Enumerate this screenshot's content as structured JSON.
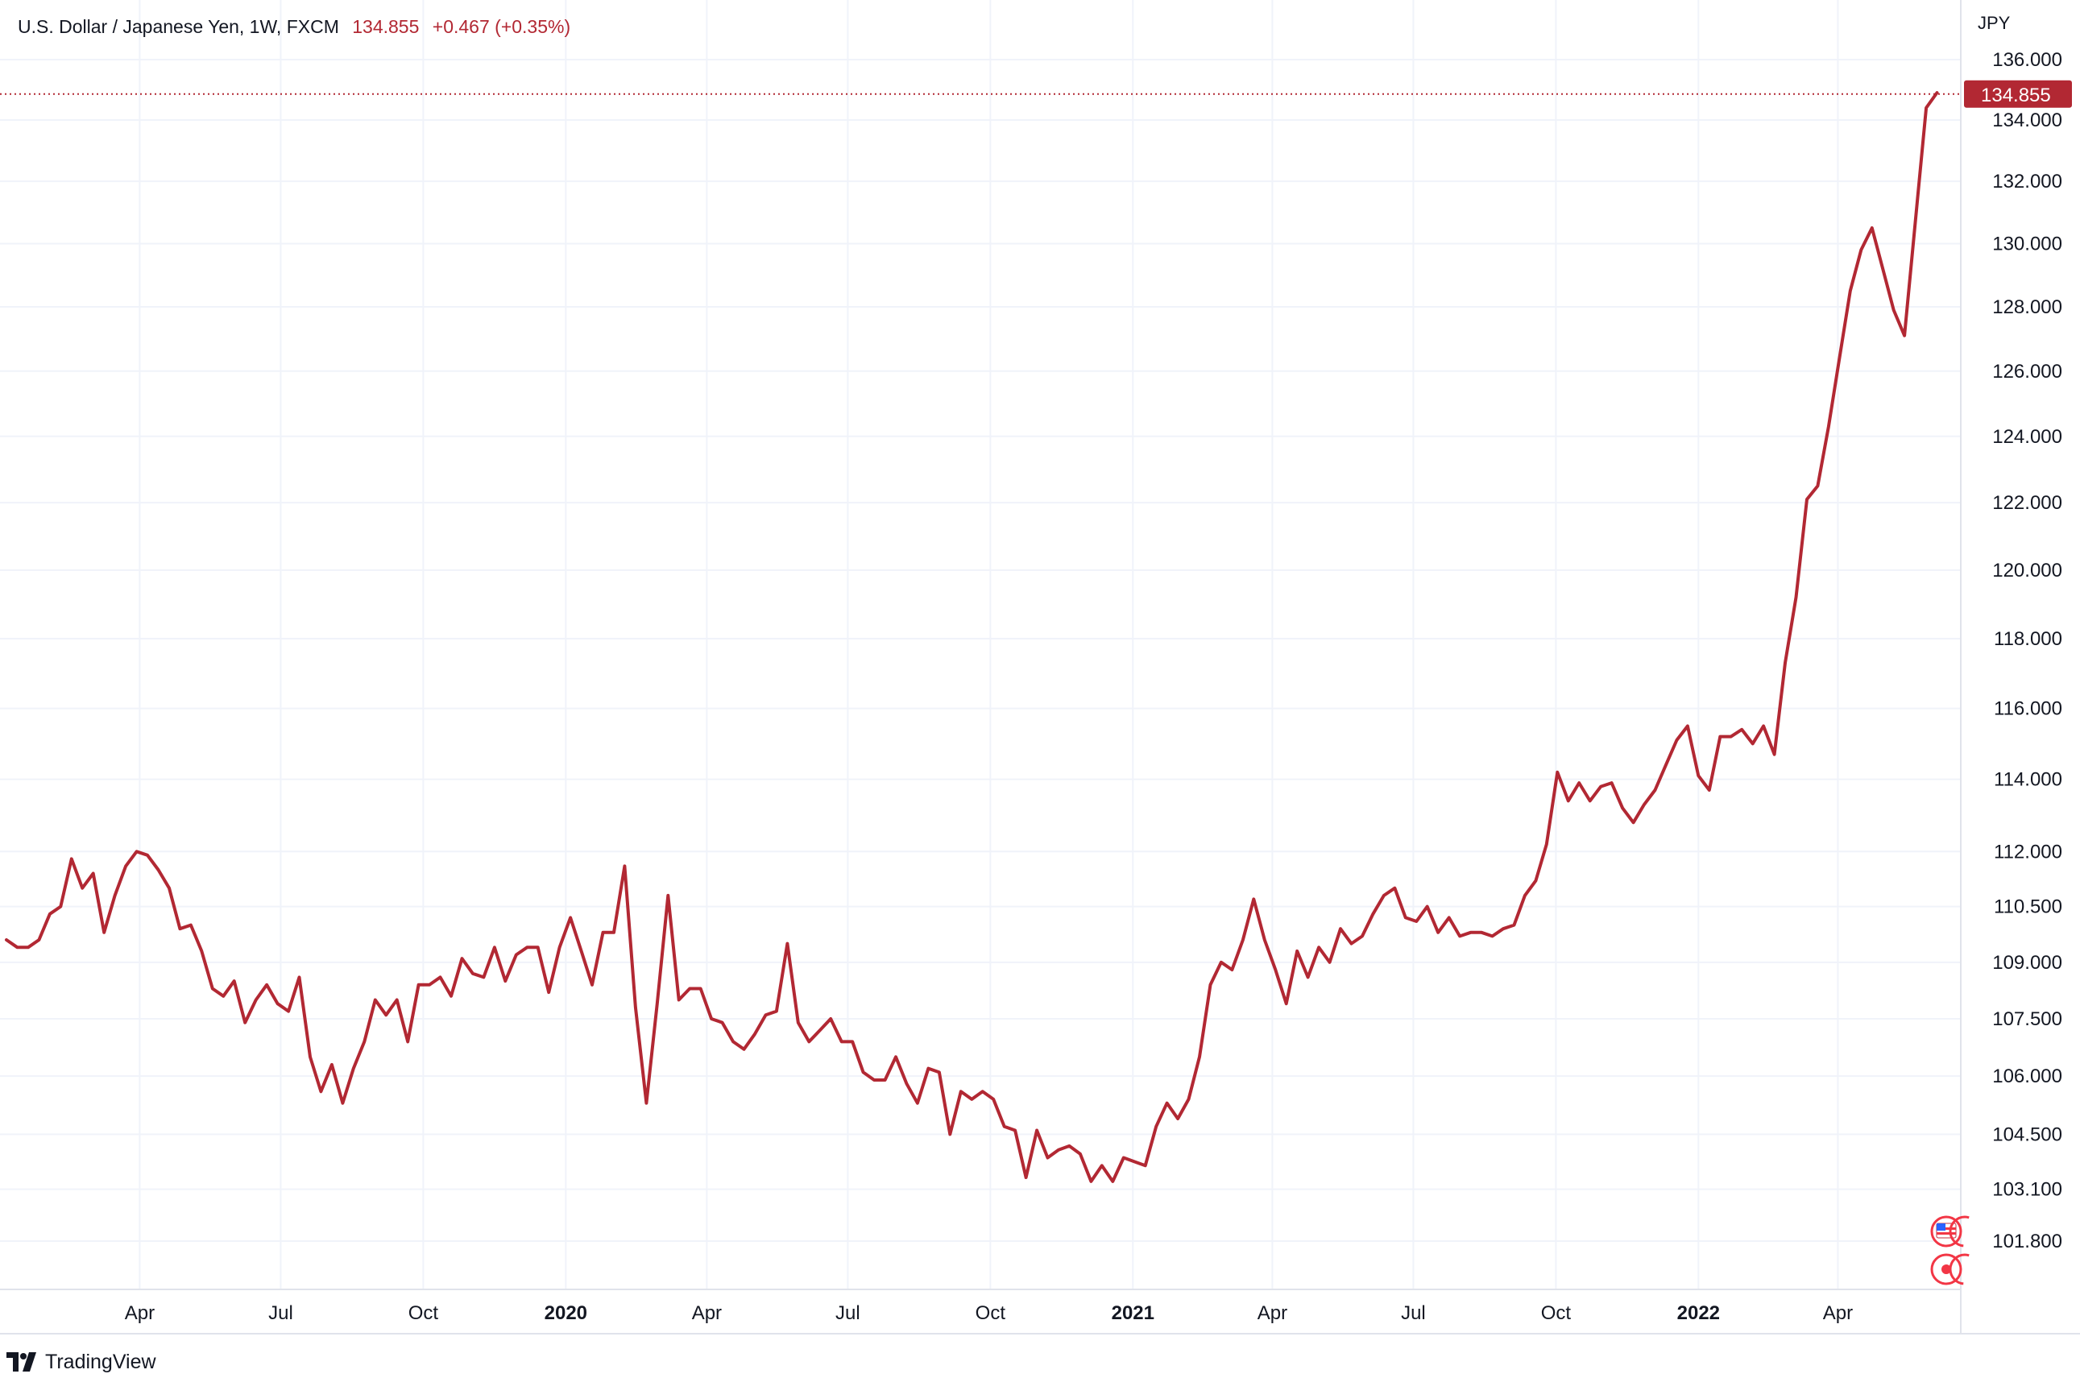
{
  "header": {
    "symbol_title": "U.S. Dollar / Japanese Yen, 1W, FXCM",
    "last_price": "134.855",
    "change": "+0.467 (+0.35%)"
  },
  "price_unit": "JPY",
  "last_price_badge": "134.855",
  "brand": {
    "name": "TradingView"
  },
  "colors": {
    "series": "#b22833",
    "grid": "#f0f3fa",
    "text": "#131722",
    "badge_bg": "#b22833"
  },
  "chart_data": {
    "type": "line",
    "title": "U.S. Dollar / Japanese Yen, 1W, FXCM",
    "xlabel": "",
    "ylabel": "",
    "y_scale": "log",
    "ylim": [
      100.6,
      138.0
    ],
    "x_range": [
      "2019-01-05",
      "2022-06-11"
    ],
    "y_ticks": [
      "101.800",
      "103.100",
      "104.500",
      "106.000",
      "107.500",
      "109.000",
      "110.500",
      "112.000",
      "114.000",
      "116.000",
      "118.000",
      "120.000",
      "122.000",
      "124.000",
      "126.000",
      "128.000",
      "130.000",
      "132.000",
      "134.000",
      "136.000"
    ],
    "x_ticks": [
      {
        "label": "Apr",
        "date": "2019-04-01",
        "bold": false
      },
      {
        "label": "Jul",
        "date": "2019-07-01",
        "bold": false
      },
      {
        "label": "Oct",
        "date": "2019-10-01",
        "bold": false
      },
      {
        "label": "2020",
        "date": "2020-01-01",
        "bold": true
      },
      {
        "label": "Apr",
        "date": "2020-04-01",
        "bold": false
      },
      {
        "label": "Jul",
        "date": "2020-07-01",
        "bold": false
      },
      {
        "label": "Oct",
        "date": "2020-10-01",
        "bold": false
      },
      {
        "label": "2021",
        "date": "2021-01-01",
        "bold": true
      },
      {
        "label": "Apr",
        "date": "2021-04-01",
        "bold": false
      },
      {
        "label": "Jul",
        "date": "2021-07-01",
        "bold": false
      },
      {
        "label": "Oct",
        "date": "2021-10-01",
        "bold": false
      },
      {
        "label": "2022",
        "date": "2022-01-01",
        "bold": true
      },
      {
        "label": "Apr",
        "date": "2022-04-01",
        "bold": false
      }
    ],
    "grid": true,
    "last_value": 134.855,
    "series": [
      {
        "name": "",
        "x_start": "2019-01-05",
        "x_step_days": 7,
        "values": [
          109.6,
          109.4,
          109.4,
          109.6,
          110.3,
          110.5,
          111.8,
          111.0,
          111.4,
          109.8,
          110.8,
          111.6,
          112.0,
          111.9,
          111.5,
          111.0,
          109.9,
          110.0,
          109.3,
          108.3,
          108.1,
          108.5,
          107.4,
          108.0,
          108.4,
          107.9,
          107.7,
          108.6,
          106.5,
          105.6,
          106.3,
          105.3,
          106.2,
          106.9,
          108.0,
          107.6,
          108.0,
          106.9,
          108.4,
          108.4,
          108.6,
          108.1,
          109.1,
          108.7,
          108.6,
          109.4,
          108.5,
          109.2,
          109.4,
          109.4,
          108.2,
          109.4,
          110.2,
          109.3,
          108.4,
          109.8,
          109.8,
          111.6,
          107.8,
          105.3,
          107.9,
          110.8,
          108.0,
          108.3,
          108.3,
          107.5,
          107.4,
          106.9,
          106.7,
          107.1,
          107.6,
          107.7,
          109.5,
          107.4,
          106.9,
          107.2,
          107.5,
          106.9,
          106.9,
          106.1,
          105.9,
          105.9,
          106.5,
          105.8,
          105.3,
          106.2,
          106.1,
          104.5,
          105.6,
          105.4,
          105.6,
          105.4,
          104.7,
          104.6,
          103.4,
          104.6,
          103.9,
          104.1,
          104.2,
          104.0,
          103.3,
          103.7,
          103.3,
          103.9,
          103.8,
          103.7,
          104.7,
          105.3,
          104.9,
          105.4,
          106.5,
          108.4,
          109.0,
          108.8,
          109.6,
          110.7,
          109.6,
          108.8,
          107.9,
          109.3,
          108.6,
          109.4,
          109.0,
          109.9,
          109.5,
          109.7,
          110.3,
          110.8,
          111.0,
          110.2,
          110.1,
          110.5,
          109.8,
          110.2,
          109.7,
          109.8,
          109.8,
          109.7,
          109.9,
          110.0,
          110.8,
          111.2,
          112.2,
          114.2,
          113.4,
          113.9,
          113.4,
          113.8,
          113.9,
          113.2,
          112.8,
          113.3,
          113.7,
          114.4,
          115.1,
          115.5,
          114.1,
          113.7,
          115.2,
          115.2,
          115.4,
          115.0,
          115.5,
          114.7,
          117.3,
          119.2,
          122.1,
          122.5,
          124.3,
          126.4,
          128.5,
          129.8,
          130.5,
          129.2,
          127.9,
          127.1,
          130.7,
          134.4,
          134.9
        ]
      }
    ]
  }
}
